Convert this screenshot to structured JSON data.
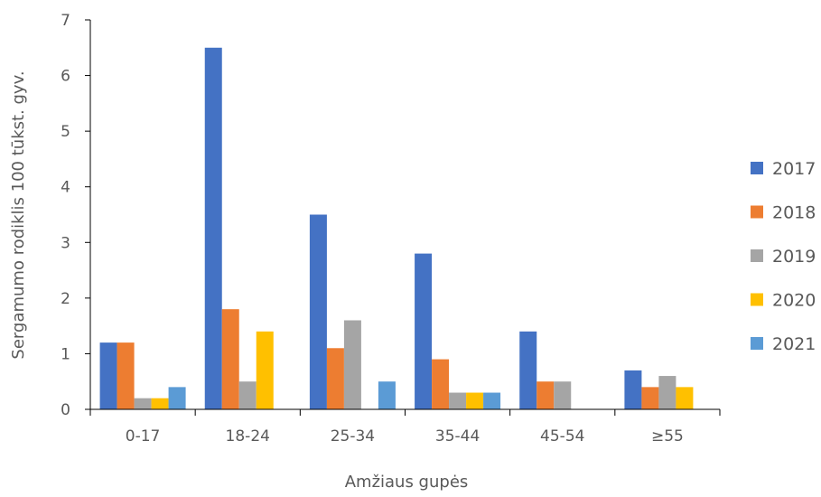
{
  "chart_data": {
    "type": "bar",
    "categories": [
      "0-17",
      "18-24",
      "25-34",
      "35-44",
      "45-54",
      "≥55"
    ],
    "series": [
      {
        "name": "2017",
        "color": "#4472C4",
        "values": [
          1.2,
          6.5,
          3.5,
          2.8,
          1.4,
          0.7
        ]
      },
      {
        "name": "2018",
        "color": "#ED7D31",
        "values": [
          1.2,
          1.8,
          1.1,
          0.9,
          0.5,
          0.4
        ]
      },
      {
        "name": "2019",
        "color": "#A5A5A5",
        "values": [
          0.2,
          0.5,
          1.6,
          0.3,
          0.5,
          0.6
        ]
      },
      {
        "name": "2020",
        "color": "#FFC000",
        "values": [
          0.2,
          1.4,
          0,
          0.3,
          0,
          0.4
        ]
      },
      {
        "name": "2021",
        "color": "#5B9BD5",
        "values": [
          0.4,
          0,
          0.5,
          0.3,
          0,
          0
        ]
      }
    ],
    "title": "",
    "xlabel": "Amžiaus gupės",
    "ylabel": "Sergamumo rodiklis 100 tūkst. gyv.",
    "ylim": [
      0,
      7
    ],
    "yticks": [
      "0",
      "1",
      "2",
      "3",
      "4",
      "5",
      "6",
      "7"
    ],
    "grid": false,
    "legend_position": "right"
  }
}
